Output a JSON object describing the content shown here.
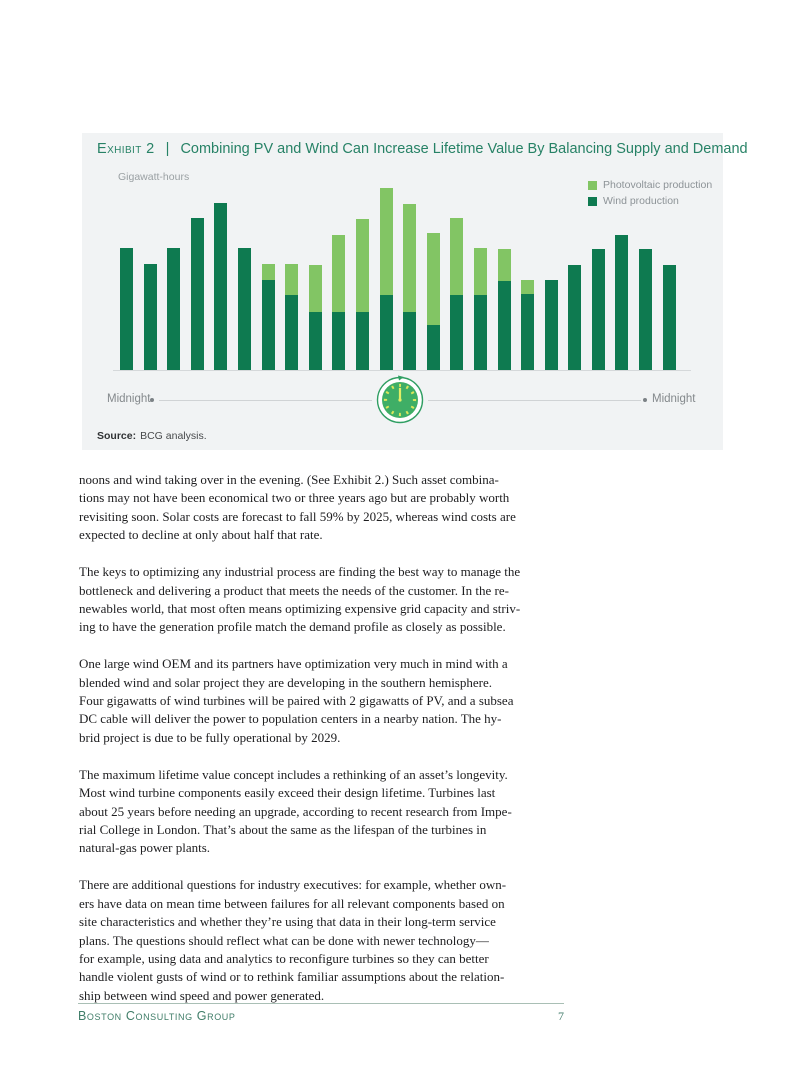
{
  "exhibit": {
    "label": "Exhibit 2",
    "separator": "|",
    "title": "Combining PV and Wind Can Increase Lifetime Value By Balancing Supply and Demand",
    "title_color": "#278266",
    "y_axis_label": "Gigawatt-hours",
    "legend": [
      {
        "label": "Photovoltaic production",
        "color": "#82c564"
      },
      {
        "label": "Wind production",
        "color": "#0e7a50"
      }
    ],
    "x_axis": {
      "left_label": "Midnight",
      "right_label": "Midnight"
    },
    "source": {
      "label": "Source:",
      "text": "BCG analysis."
    }
  },
  "chart_data": {
    "type": "bar",
    "stacked": true,
    "title": "Combining PV and Wind Can Increase Lifetime Value By Balancing Supply and Demand",
    "ylabel": "Gigawatt-hours",
    "xlabel": "",
    "x_axis_endpoints": [
      "Midnight",
      "Midnight"
    ],
    "categories": [
      0,
      1,
      2,
      3,
      4,
      5,
      6,
      7,
      8,
      9,
      10,
      11,
      12,
      13,
      14,
      15,
      16,
      17,
      18,
      19,
      20,
      21,
      22,
      23
    ],
    "units": "relative gigawatt-hours (no numeric axis shown; values estimated from bar heights)",
    "ylim": [
      0,
      190
    ],
    "grid": false,
    "legend_position": "top-right",
    "series": [
      {
        "name": "Wind production",
        "color": "#0e7a50",
        "values": [
          122,
          106,
          122,
          152,
          167,
          122,
          90,
          75,
          58,
          58,
          58,
          75,
          58,
          45,
          75,
          75,
          89,
          76,
          90,
          105,
          121,
          135,
          121,
          105
        ]
      },
      {
        "name": "Photovoltaic production",
        "color": "#82c564",
        "values": [
          0,
          0,
          0,
          0,
          0,
          0,
          16,
          31,
          47,
          77,
          93,
          107,
          108,
          92,
          77,
          47,
          32,
          14,
          0,
          0,
          0,
          0,
          0,
          0
        ]
      }
    ]
  },
  "body": {
    "paragraphs": [
      [
        "noons and wind taking over in the evening. (See Exhibit 2.) Such asset combina-",
        "tions may not have been economical two or three years ago but are probably worth",
        "revisiting soon. Solar costs are forecast to fall 59% by 2025, whereas wind costs are",
        "expected to decline at only about half that rate."
      ],
      [
        "The keys to optimizing any industrial process are finding the best way to manage the",
        "bottleneck and delivering a product that meets the needs of the customer. In the re-",
        "newables world, that most often means optimizing expensive grid capacity and striv-",
        "ing to have the generation profile match the demand profile as closely as possible."
      ],
      [
        "One large wind OEM and its partners have optimization very much in mind with a",
        "blended wind and solar project they are developing in the southern hemisphere.",
        "Four gigawatts of wind turbines will be paired with 2 gigawatts of PV, and a subsea",
        "DC cable will deliver the power to population centers in a nearby nation. The hy-",
        "brid project is due to be fully operational by 2029."
      ],
      [
        "The maximum lifetime value concept includes a rethinking of an asset’s longevity.",
        "Most wind turbine components easily exceed their design lifetime. Turbines last",
        "about 25 years before needing an upgrade, according to recent research from Impe-",
        "rial College in London. That’s about the same as the lifespan of the turbines in",
        "natural-gas power plants."
      ],
      [
        "There are additional questions for industry executives: for example, whether own-",
        "ers have data on mean time between failures for all relevant components based on",
        "site characteristics and whether they’re using that data in their long-term service",
        "plans. The questions should reflect what can be done with newer technology—",
        "for example, using data and analytics to reconfigure turbines so they can better",
        "handle violent gusts of wind or to rethink familiar assumptions about the relation-",
        "ship between wind speed and power generated."
      ]
    ]
  },
  "footer": {
    "brand": "Boston Consulting Group",
    "page_number": "7"
  }
}
